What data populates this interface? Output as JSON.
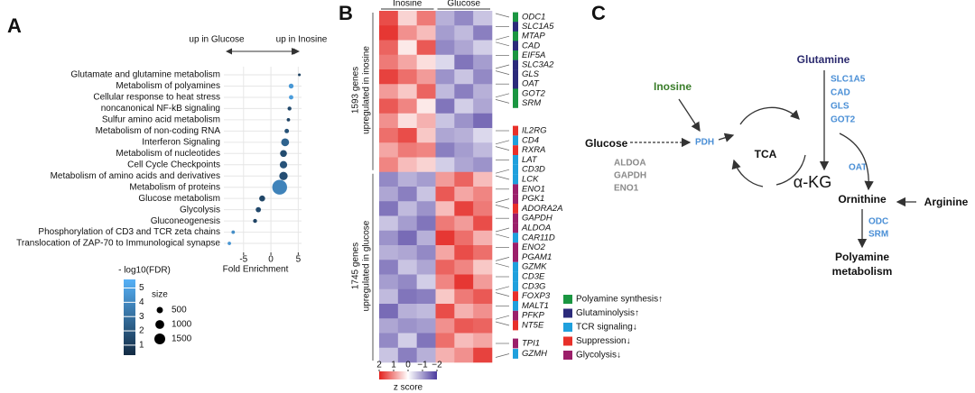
{
  "chart_data": [
    {
      "type": "scatter",
      "label": "A",
      "direction_left": "up in Glucose",
      "direction_right": "up in Inosine",
      "categories": [
        "Glutamate and glutamine metabolism",
        "Metabolism of polyamines",
        "Cellular response to heat stress",
        "noncanonical NF-kB signaling",
        "Sulfur amino acid metabolism",
        "Metabolism of non-coding RNA",
        "Interferon Signaling",
        "Metabolism of nucleotides",
        "Cell Cycle Checkpoints",
        "Metabolism of amino acids and derivatives",
        "Metabolism of proteins",
        "Glucose metabolism",
        "Glycolysis",
        "Gluconeogenesis",
        "Phosphorylation of CD3 and TCR zeta chains",
        "Translocation of ZAP-70 to Immunological synapse"
      ],
      "values": [
        5.2,
        3.7,
        3.7,
        3.4,
        3.2,
        2.9,
        2.6,
        2.3,
        2.3,
        2.3,
        1.6,
        -1.6,
        -2.3,
        -2.9,
        -6.9,
        -7.6
      ],
      "sizes": [
        60,
        300,
        250,
        200,
        150,
        250,
        800,
        600,
        700,
        900,
        2800,
        450,
        350,
        200,
        150,
        150
      ],
      "fdr": [
        1.2,
        4.6,
        4.8,
        1.5,
        1.3,
        1.8,
        2.5,
        1.6,
        1.9,
        1.7,
        3.8,
        1.4,
        1.5,
        1.3,
        4.2,
        4.5
      ],
      "xlabel": "Fold Enrichment",
      "xlim": [
        -8.6,
        5.6
      ],
      "xticks": [
        -5,
        0,
        5
      ],
      "grid": true,
      "color_legend": {
        "title": "- log10(FDR)",
        "lim": [
          0.3,
          5.6
        ],
        "ticks": [
          1,
          2,
          3,
          4,
          5
        ],
        "colors": [
          "#132B43",
          "#56B1F7"
        ]
      },
      "size_legend": {
        "title": "size",
        "values": [
          500,
          1000,
          1500
        ]
      }
    },
    {
      "type": "heatmap",
      "label": "B",
      "column_groups": [
        "Inosine",
        "Glucose"
      ],
      "row_groups": [
        [
          "1593 genes",
          "upregulated in inosine"
        ],
        [
          "1745 genes",
          "upregulated in glucose"
        ]
      ],
      "values": [
        [
          1.6,
          0.4,
          1.2,
          -0.8,
          -1.2,
          -0.6
        ],
        [
          1.8,
          1.0,
          0.6,
          -1.0,
          -0.7,
          -1.3
        ],
        [
          1.4,
          0.2,
          1.5,
          -1.2,
          -0.9,
          -0.5
        ],
        [
          1.2,
          0.8,
          0.3,
          -0.4,
          -1.4,
          -1.0
        ],
        [
          1.7,
          1.3,
          0.9,
          -1.1,
          -0.6,
          -1.2
        ],
        [
          0.9,
          0.5,
          1.4,
          -0.7,
          -1.3,
          -0.8
        ],
        [
          1.5,
          1.1,
          0.2,
          -1.4,
          -0.5,
          -0.9
        ],
        [
          1.0,
          0.3,
          0.7,
          -0.6,
          -1.1,
          -1.5
        ],
        [
          1.3,
          1.6,
          0.5,
          -0.9,
          -0.8,
          -0.4
        ],
        [
          0.8,
          1.2,
          1.1,
          -1.3,
          -1.0,
          -0.7
        ],
        [
          1.1,
          0.6,
          0.4,
          -0.5,
          -0.9,
          -1.1
        ],
        [
          -1.2,
          -0.8,
          -1.0,
          0.9,
          1.4,
          0.6
        ],
        [
          -0.9,
          -1.3,
          -0.6,
          1.5,
          0.8,
          1.1
        ],
        [
          -1.4,
          -0.7,
          -1.1,
          0.6,
          1.7,
          1.2
        ],
        [
          -0.6,
          -1.0,
          -1.4,
          1.2,
          0.9,
          1.6
        ],
        [
          -1.1,
          -1.5,
          -0.8,
          1.8,
          1.3,
          0.7
        ],
        [
          -0.8,
          -0.9,
          -1.2,
          0.8,
          1.6,
          1.3
        ],
        [
          -1.3,
          -0.6,
          -0.9,
          1.4,
          1.1,
          0.5
        ],
        [
          -1.0,
          -1.2,
          -0.5,
          1.1,
          1.8,
          0.9
        ],
        [
          -0.7,
          -1.4,
          -1.3,
          0.5,
          1.2,
          1.5
        ],
        [
          -1.5,
          -0.8,
          -0.7,
          1.6,
          0.7,
          1.0
        ],
        [
          -0.9,
          -1.1,
          -1.0,
          1.0,
          1.5,
          1.4
        ],
        [
          -1.2,
          -0.5,
          -1.4,
          1.3,
          0.6,
          0.8
        ],
        [
          -0.6,
          -1.3,
          -0.8,
          0.7,
          1.0,
          1.7
        ]
      ],
      "colorbar": {
        "title": "z score",
        "ticks": [
          2,
          1,
          0,
          {
            "value": -1,
            "label": "−1"
          },
          {
            "value": -2,
            "label": "−2"
          }
        ],
        "colors": [
          "#e3211c",
          "#ffffff",
          "#4b3a9e"
        ]
      },
      "genes": [
        "ODC1",
        "SLC1A5",
        "MTAP",
        "CAD",
        "EIF5A",
        "SLC3A2",
        "GLS",
        "OAT",
        "GOT2",
        "SRM",
        "IL2RG",
        "CD4",
        "RXRA",
        "LAT",
        "CD3D",
        "LCK",
        "ENO1",
        "PGK1",
        "ADORA2A",
        "GAPDH",
        "ALDOA",
        "CAR11D",
        "ENO2",
        "PGAM1",
        "GZMK",
        "CD3E",
        "CD3G",
        "FOXP3",
        "MALT1",
        "PFKP",
        "NT5E",
        "TPI1",
        "GZMH"
      ],
      "gene_group": [
        0,
        1,
        0,
        1,
        0,
        1,
        1,
        1,
        0,
        0,
        3,
        2,
        3,
        2,
        2,
        2,
        4,
        4,
        3,
        4,
        4,
        2,
        4,
        4,
        2,
        2,
        2,
        3,
        2,
        4,
        3,
        4,
        2
      ],
      "groups": [
        {
          "name": "Polyamine synthesis↑",
          "color": "#1a9641"
        },
        {
          "name": "Glutaminolysis↑",
          "color": "#2b2a7a"
        },
        {
          "name": "TCR signaling↓",
          "color": "#1fa0dd"
        },
        {
          "name": "Suppression↓",
          "color": "#e8302a"
        },
        {
          "name": "Glycolysis↓",
          "color": "#9b1f6a"
        }
      ]
    }
  ],
  "diagram": {
    "label": "C",
    "glutamine": "Glutamine",
    "glutamine_enzymes": [
      "SLC1A5",
      "CAD",
      "GLS",
      "GOT2"
    ],
    "inosine": "Inosine",
    "glucose": "Glucose",
    "pdh": "PDH",
    "glycolysis_enzymes": [
      "ALDOA",
      "GAPDH",
      "ENO1"
    ],
    "tca": "TCA",
    "akg": "α-KG",
    "oat": "OAT",
    "ornithine": "Ornithine",
    "arginine": "Arginine",
    "ornithine_enzymes": [
      "ODC",
      "SRM"
    ],
    "product": [
      "Polyamine",
      "metabolism"
    ]
  }
}
